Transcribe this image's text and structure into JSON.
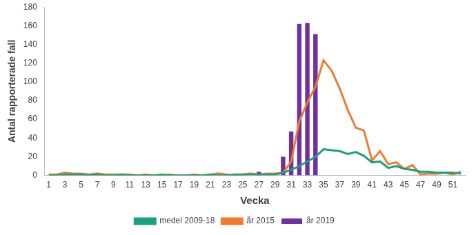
{
  "chart_data": {
    "type": "bar",
    "x_label": "Vecka",
    "y_label": "Antal rapporterade fall",
    "categories": [
      1,
      null,
      3,
      null,
      5,
      null,
      7,
      null,
      9,
      null,
      11,
      null,
      13,
      null,
      15,
      null,
      17,
      null,
      19,
      null,
      21,
      null,
      23,
      null,
      25,
      null,
      27,
      null,
      29,
      null,
      31,
      null,
      33,
      null,
      35,
      null,
      37,
      null,
      39,
      null,
      41,
      null,
      43,
      null,
      45,
      null,
      47,
      null,
      49,
      null,
      51,
      null
    ],
    "series": [
      {
        "name": "år 2019",
        "type": "bar",
        "color": "#7030a0",
        "values": [
          0,
          0,
          0,
          0,
          0,
          0,
          0,
          0,
          0,
          0,
          0,
          0,
          0,
          0,
          0,
          0,
          0,
          0,
          0,
          0,
          0,
          0,
          0,
          0,
          0,
          0,
          4,
          0,
          0,
          20,
          47,
          162,
          163,
          151,
          null,
          null,
          null,
          null,
          null,
          null,
          null,
          null,
          null,
          null,
          null,
          null,
          null,
          null,
          null,
          null,
          null,
          null
        ]
      },
      {
        "name": "medel 2009-18",
        "type": "line",
        "color": "#1aa080",
        "values": [
          0,
          0,
          1,
          1,
          1,
          0,
          1,
          0,
          0,
          1,
          0,
          0,
          0,
          0,
          1,
          0,
          0,
          0,
          0,
          0,
          1,
          0,
          0,
          1,
          1,
          1,
          1,
          1,
          1,
          3,
          6,
          10,
          15,
          20,
          28,
          27,
          26,
          23,
          25,
          21,
          14,
          15,
          8,
          10,
          7,
          6,
          4,
          4,
          3,
          3,
          3,
          2
        ]
      },
      {
        "name": "år 2015",
        "type": "line",
        "color": "#f07b2e",
        "values": [
          1,
          1,
          3,
          2,
          2,
          1,
          2,
          1,
          1,
          1,
          1,
          0,
          1,
          0,
          0,
          1,
          0,
          0,
          1,
          0,
          1,
          2,
          1,
          0,
          1,
          2,
          1,
          2,
          2,
          3,
          15,
          58,
          78,
          95,
          123,
          112,
          93,
          70,
          51,
          48,
          16,
          26,
          12,
          14,
          7,
          11,
          1,
          2,
          2,
          3,
          1,
          4
        ]
      }
    ],
    "ylim": [
      0,
      180
    ],
    "yticks": [
      0,
      20,
      40,
      60,
      80,
      100,
      120,
      140,
      160,
      180
    ],
    "grid": false,
    "legend": "bottom"
  }
}
